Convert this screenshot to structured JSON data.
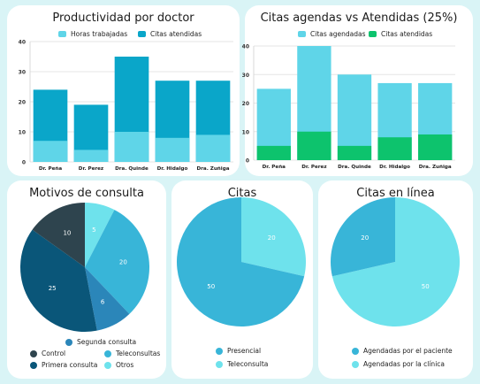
{
  "colors": {
    "background": "#d9f4f6",
    "light_cyan": "#5fd5e8",
    "cyan": "#0aa6c9",
    "green": "#0dc36d",
    "dark_slate": "#2e444e",
    "navy": "#0a5679",
    "blue": "#2b86b9",
    "mid_cyan": "#38b5d8",
    "pale_cyan": "#6ee2ec"
  },
  "chart_data": [
    {
      "type": "bar",
      "title": "Productividad por doctor",
      "categories": [
        "Dr. Peña",
        "Dr. Perez",
        "Dra. Quinde",
        "Dr. Hidalgo",
        "Dra. Zuñiga"
      ],
      "series": [
        {
          "name": "Horas trabajadas",
          "values": [
            7,
            4,
            10,
            8,
            9
          ],
          "color": "#5fd5e8"
        },
        {
          "name": "Citas atendidas",
          "values": [
            24,
            19,
            35,
            27,
            27
          ],
          "color": "#0aa6c9"
        }
      ],
      "yticks": [
        0,
        10,
        20,
        30,
        40
      ],
      "ylim": [
        0,
        40
      ],
      "legend": "top"
    },
    {
      "type": "bar",
      "title": "Citas agendas vs Atendidas (25%)",
      "categories": [
        "Dr. Peña",
        "Dr. Perez",
        "Dra. Quinde",
        "Dr. Hidalgo",
        "Dra. Zuñiga"
      ],
      "series": [
        {
          "name": "Citas agendadas",
          "values": [
            25,
            40,
            30,
            27,
            27
          ],
          "color": "#5fd5e8"
        },
        {
          "name": "Citas atendidas",
          "values": [
            5,
            10,
            5,
            8,
            9
          ],
          "color": "#0dc36d"
        }
      ],
      "yticks": [
        0,
        10,
        20,
        30,
        40
      ],
      "ylim": [
        0,
        40
      ],
      "legend": "top"
    },
    {
      "type": "pie",
      "title": "Motivos de consulta",
      "slices": [
        {
          "label": "Otros",
          "value": 5,
          "color": "#6ee2ec"
        },
        {
          "label": "Teleconsultas",
          "value": 20,
          "color": "#38b5d8"
        },
        {
          "label": "Segunda consulta",
          "value": 6,
          "color": "#2b86b9"
        },
        {
          "label": "Primera consulta",
          "value": 25,
          "color": "#0a5679"
        },
        {
          "label": "Control",
          "value": 10,
          "color": "#2e444e"
        }
      ],
      "legend": "bottom"
    },
    {
      "type": "pie",
      "title": "Citas",
      "slices": [
        {
          "label": "Teleconsulta",
          "value": 20,
          "color": "#6ee2ec"
        },
        {
          "label": "Presencial",
          "value": 50,
          "color": "#38b5d8"
        }
      ],
      "legend": "bottom"
    },
    {
      "type": "pie",
      "title": "Citas en línea",
      "slices": [
        {
          "label": "Agendadas por la clínica",
          "value": 50,
          "color": "#6ee2ec"
        },
        {
          "label": "Agendadas por el paciente",
          "value": 20,
          "color": "#38b5d8"
        }
      ],
      "legend": "bottom"
    }
  ],
  "legends": {
    "pie1": {
      "top": "Segunda consulta",
      "left": [
        "Control",
        "Primera consulta"
      ],
      "right": [
        "Teleconsultas",
        "Otros"
      ]
    },
    "pie2": [
      "Presencial",
      "Teleconsulta"
    ],
    "pie3": [
      "Agendadas por el paciente",
      "Agendadas por la clínica"
    ]
  }
}
